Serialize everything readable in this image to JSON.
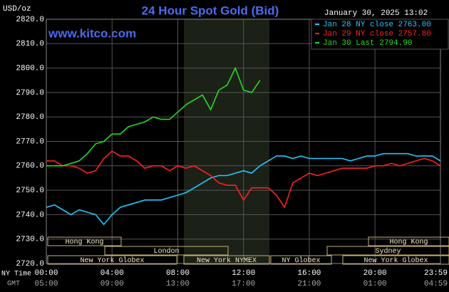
{
  "chart_data": {
    "type": "line",
    "title": "24 Hour Spot Gold (Bid)",
    "unit_label": "USD/oz",
    "website": "www.kitco.com",
    "timestamp": "January 30, 2025 13:02",
    "x_row_label": "NY Time",
    "gmt_row_label": "GMT",
    "x": [
      0,
      0.5,
      1,
      1.5,
      2,
      2.5,
      3,
      3.5,
      4,
      4.5,
      5,
      5.5,
      6,
      6.5,
      7,
      7.5,
      8,
      8.5,
      9,
      9.5,
      10,
      10.5,
      11,
      11.5,
      12,
      12.5,
      13,
      13.5,
      14,
      14.5,
      15,
      15.5,
      16,
      16.5,
      17,
      17.5,
      18,
      18.5,
      19,
      19.5,
      20,
      20.5,
      21,
      21.5,
      22,
      22.5,
      23,
      23.5,
      23.983
    ],
    "xlim": [
      0,
      23.983
    ],
    "xticks": [
      {
        "value": 0,
        "label": "00:00"
      },
      {
        "value": 4,
        "label": "04:00"
      },
      {
        "value": 8,
        "label": "08:00"
      },
      {
        "value": 12,
        "label": "12:00"
      },
      {
        "value": 16,
        "label": "16:00"
      },
      {
        "value": 20,
        "label": "20:00"
      },
      {
        "value": 23.983,
        "label": "23:59"
      }
    ],
    "gmt_labels": [
      "05:00",
      "09:00",
      "13:00",
      "17:00",
      "21:00",
      "01:00",
      "04:59"
    ],
    "ylim": [
      2720,
      2820
    ],
    "yticks": [
      {
        "value": 2720,
        "label": "2720.0"
      },
      {
        "value": 2730,
        "label": "2730.0"
      },
      {
        "value": 2740,
        "label": "2740.0"
      },
      {
        "value": 2750,
        "label": "2750.0"
      },
      {
        "value": 2760,
        "label": "2760.0"
      },
      {
        "value": 2770,
        "label": "2770.0"
      },
      {
        "value": 2780,
        "label": "2780.0"
      },
      {
        "value": 2790,
        "label": "2790.0"
      },
      {
        "value": 2800,
        "label": "2800.0"
      },
      {
        "value": 2810,
        "label": "2810.0"
      },
      {
        "value": 2820,
        "label": "2820.0"
      }
    ],
    "grid": true,
    "legend": "top-right",
    "series": [
      {
        "name": "Jan 28 NY close 2763.00",
        "color": "#22c8ff",
        "values": [
          2743,
          2744,
          2742,
          2740,
          2742,
          2741,
          2740,
          2736,
          2740,
          2743,
          2744,
          2745,
          2746,
          2746,
          2746,
          2747,
          2748,
          2749,
          2751,
          2753,
          2755,
          2756,
          2756,
          2757,
          2758,
          2757,
          2760,
          2762,
          2764,
          2764,
          2763,
          2764,
          2763,
          2763,
          2763,
          2763,
          2763,
          2762,
          2763,
          2764,
          2764,
          2765,
          2765,
          2765,
          2765,
          2764,
          2764,
          2764,
          2762
        ]
      },
      {
        "name": "Jan 29 NY close 2757.80",
        "color": "#ff2020",
        "values": [
          2762,
          2762,
          2760,
          2760,
          2759,
          2757,
          2758,
          2763,
          2766,
          2764,
          2764,
          2762,
          2759,
          2760,
          2760,
          2758,
          2760,
          2759,
          2760,
          2758,
          2756,
          2753,
          2752,
          2752,
          2746,
          2751,
          2751,
          2751,
          2748,
          2743,
          2753,
          2755,
          2757,
          2756,
          2757,
          2758,
          2759,
          2759,
          2759,
          2759,
          2760,
          2760,
          2761,
          2760,
          2761,
          2762,
          2763,
          2762,
          2760
        ]
      },
      {
        "name": "Jan 30 Last 2794.90",
        "color": "#22dd22",
        "values": [
          2760,
          2760,
          2760,
          2761,
          2762,
          2765,
          2769,
          2770,
          2773,
          2773,
          2776,
          2777,
          2778,
          2780,
          2779,
          2779,
          2782,
          2785,
          2787,
          2789,
          2783,
          2791,
          2793,
          2800,
          2791,
          2790,
          2795,
          null,
          null,
          null,
          null,
          null,
          null,
          null,
          null,
          null,
          null,
          null,
          null,
          null,
          null,
          null,
          null,
          null,
          null,
          null,
          null,
          null,
          null
        ]
      }
    ],
    "sessions": [
      "Hong Kong",
      "London",
      "New York Globex",
      "New York NYMEX",
      "NY Globex",
      "Hong Kong",
      "Sydney",
      "New York Globex"
    ]
  }
}
